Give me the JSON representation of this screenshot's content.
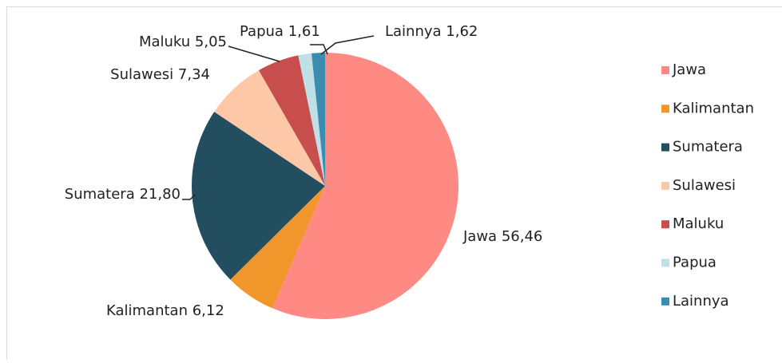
{
  "chart_data": {
    "type": "pie",
    "categories": [
      "Jawa",
      "Kalimantan",
      "Sumatera",
      "Sulawesi",
      "Maluku",
      "Papua",
      "Lainnya"
    ],
    "values": [
      56.46,
      6.12,
      21.8,
      7.34,
      5.05,
      1.61,
      1.62
    ],
    "value_labels": [
      "56,46",
      "6,12",
      "21,80",
      "7,34",
      "5,05",
      "1,61",
      "1,62"
    ],
    "colors": [
      "#ff8a84",
      "#f1962a",
      "#234e5f",
      "#fdc8a8",
      "#c84e4e",
      "#c0e0e8",
      "#3a8db1"
    ],
    "legend": "right"
  }
}
